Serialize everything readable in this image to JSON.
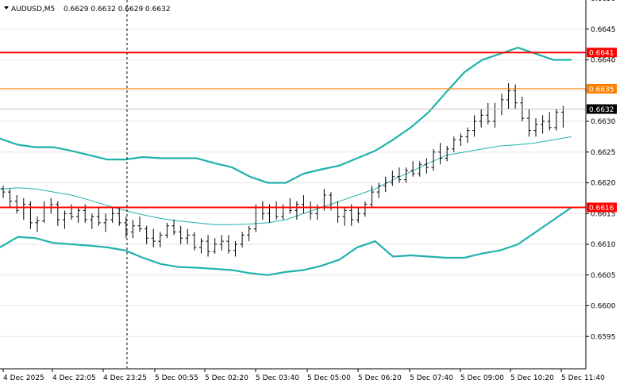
{
  "header": {
    "symbol_tf": "AUDUSD,M5",
    "ohlc": "0.6629 0.6632 0.6629 0.6632"
  },
  "colors": {
    "bg": "#ffffff",
    "bars": "#000000",
    "bands": "#20b2aa",
    "hline_red": "#ff0000",
    "hline_orange": "#ff7f00",
    "axis": "#000000",
    "grid": "#c0c0c0"
  },
  "chart_data": {
    "type": "ohlc",
    "symbol": "AUDUSD",
    "timeframe": "M5",
    "ylim": [
      0.659,
      0.665
    ],
    "y_ticks": [
      "0.6650",
      "0.6645",
      "0.6640",
      "0.6635",
      "0.6630",
      "0.6625",
      "0.6620",
      "0.6615",
      "0.6610",
      "0.6605",
      "0.6600",
      "0.6595"
    ],
    "x_ticks": [
      "4 Dec 2025",
      "4 Dec 22:05",
      "4 Dec 23:25",
      "5 Dec 00:55",
      "5 Dec 02:20",
      "5 Dec 03:40",
      "5 Dec 05:00",
      "5 Dec 06:20",
      "5 Dec 07:40",
      "5 Dec 09:00",
      "5 Dec 10:20",
      "5 Dec 11:40"
    ],
    "price_labels": [
      {
        "text": "0.6641",
        "value": 0.66412,
        "style": "red"
      },
      {
        "text": "0.6635",
        "value": 0.66353,
        "style": "orange"
      },
      {
        "text": "0.6632",
        "value": 0.6632,
        "style": "current"
      },
      {
        "text": "0.6616",
        "value": 0.6616,
        "style": "red"
      }
    ],
    "horizontal_lines": [
      {
        "value": 0.66412,
        "color": "red"
      },
      {
        "value": 0.66353,
        "color": "orange"
      },
      {
        "value": 0.6616,
        "color": "red"
      }
    ],
    "current_price": 0.6632,
    "bollinger_upper": [
      0.66272,
      0.66262,
      0.66258,
      0.66258,
      0.66252,
      0.66245,
      0.66238,
      0.66238,
      0.66242,
      0.6624,
      0.6624,
      0.6624,
      0.66232,
      0.66225,
      0.6621,
      0.662,
      0.662,
      0.66215,
      0.66222,
      0.66228,
      0.6624,
      0.66252,
      0.6627,
      0.6629,
      0.66315,
      0.66348,
      0.6638,
      0.664,
      0.6641,
      0.6642,
      0.6641,
      0.664,
      0.664
    ],
    "bollinger_middle": [
      0.6619,
      0.66192,
      0.6619,
      0.66185,
      0.6618,
      0.66172,
      0.66163,
      0.66155,
      0.66148,
      0.66142,
      0.66138,
      0.66135,
      0.66132,
      0.66132,
      0.66133,
      0.66135,
      0.6614,
      0.6615,
      0.6616,
      0.6617,
      0.6618,
      0.6619,
      0.66205,
      0.66218,
      0.66232,
      0.66245,
      0.6625,
      0.66255,
      0.6626,
      0.66262,
      0.66265,
      0.6627,
      0.66275
    ],
    "bollinger_lower": [
      0.66095,
      0.66112,
      0.6611,
      0.66102,
      0.661,
      0.66098,
      0.66095,
      0.6609,
      0.66078,
      0.66068,
      0.66063,
      0.66062,
      0.6606,
      0.66058,
      0.66053,
      0.6605,
      0.66055,
      0.66058,
      0.66065,
      0.66075,
      0.66095,
      0.66105,
      0.6608,
      0.66082,
      0.6608,
      0.66078,
      0.66078,
      0.66085,
      0.6609,
      0.661,
      0.6612,
      0.6614,
      0.6616
    ],
    "bars": [
      [
        0.6619,
        0.66195,
        0.66175,
        0.66185
      ],
      [
        0.66185,
        0.6619,
        0.6616,
        0.6617
      ],
      [
        0.6617,
        0.6618,
        0.6615,
        0.66155
      ],
      [
        0.6616,
        0.66175,
        0.6614,
        0.66165
      ],
      [
        0.66165,
        0.6617,
        0.66125,
        0.66135
      ],
      [
        0.66135,
        0.66145,
        0.6612,
        0.66138
      ],
      [
        0.66138,
        0.6617,
        0.66135,
        0.6616
      ],
      [
        0.6616,
        0.66175,
        0.6615,
        0.66165
      ],
      [
        0.66165,
        0.6617,
        0.6613,
        0.6614
      ],
      [
        0.6614,
        0.66155,
        0.66125,
        0.6615
      ],
      [
        0.6615,
        0.66165,
        0.6614,
        0.66145
      ],
      [
        0.66145,
        0.6616,
        0.66135,
        0.66155
      ],
      [
        0.66155,
        0.66165,
        0.66135,
        0.6614
      ],
      [
        0.6614,
        0.6615,
        0.66125,
        0.66145
      ],
      [
        0.66145,
        0.6616,
        0.6613,
        0.66135
      ],
      [
        0.66135,
        0.6615,
        0.6612,
        0.6614
      ],
      [
        0.6614,
        0.6616,
        0.66135,
        0.6615
      ],
      [
        0.6615,
        0.6616,
        0.6613,
        0.66135
      ],
      [
        0.66135,
        0.66145,
        0.6611,
        0.6612
      ],
      [
        0.6612,
        0.6614,
        0.6611,
        0.6613
      ],
      [
        0.6613,
        0.66145,
        0.6612,
        0.66125
      ],
      [
        0.66125,
        0.6613,
        0.661,
        0.6611
      ],
      [
        0.6611,
        0.66125,
        0.66095,
        0.66105
      ],
      [
        0.66105,
        0.6612,
        0.66095,
        0.66115
      ],
      [
        0.66115,
        0.66135,
        0.6611,
        0.6613
      ],
      [
        0.6613,
        0.6614,
        0.66115,
        0.6612
      ],
      [
        0.6612,
        0.6613,
        0.661,
        0.6611
      ],
      [
        0.6611,
        0.66125,
        0.661,
        0.66115
      ],
      [
        0.66115,
        0.6612,
        0.6609,
        0.66095
      ],
      [
        0.66095,
        0.6611,
        0.66085,
        0.66105
      ],
      [
        0.66105,
        0.66115,
        0.6608,
        0.66088
      ],
      [
        0.66088,
        0.6611,
        0.66085,
        0.661
      ],
      [
        0.661,
        0.66115,
        0.6609,
        0.66105
      ],
      [
        0.66105,
        0.66115,
        0.66085,
        0.6609
      ],
      [
        0.6609,
        0.66105,
        0.6608,
        0.661
      ],
      [
        0.661,
        0.6612,
        0.66095,
        0.66115
      ],
      [
        0.66115,
        0.6613,
        0.66105,
        0.66125
      ],
      [
        0.66125,
        0.66165,
        0.6612,
        0.6616
      ],
      [
        0.6616,
        0.6617,
        0.6614,
        0.6615
      ],
      [
        0.6615,
        0.66165,
        0.66135,
        0.6616
      ],
      [
        0.6616,
        0.6617,
        0.6614,
        0.66145
      ],
      [
        0.66145,
        0.66165,
        0.6614,
        0.6616
      ],
      [
        0.6616,
        0.66175,
        0.6615,
        0.66155
      ],
      [
        0.66155,
        0.6617,
        0.6614,
        0.66165
      ],
      [
        0.66165,
        0.6618,
        0.6615,
        0.6616
      ],
      [
        0.6616,
        0.6617,
        0.6614,
        0.6615
      ],
      [
        0.6615,
        0.66165,
        0.6614,
        0.6616
      ],
      [
        0.6616,
        0.6619,
        0.66155,
        0.6618
      ],
      [
        0.6618,
        0.66185,
        0.66155,
        0.6616
      ],
      [
        0.6616,
        0.6617,
        0.66135,
        0.66145
      ],
      [
        0.66145,
        0.6616,
        0.6613,
        0.66155
      ],
      [
        0.66155,
        0.66165,
        0.6613,
        0.6614
      ],
      [
        0.6614,
        0.6616,
        0.66135,
        0.6615
      ],
      [
        0.6615,
        0.6617,
        0.66145,
        0.66165
      ],
      [
        0.66165,
        0.66195,
        0.6616,
        0.66185
      ],
      [
        0.66185,
        0.662,
        0.66175,
        0.66195
      ],
      [
        0.66195,
        0.6621,
        0.66185,
        0.662
      ],
      [
        0.662,
        0.6622,
        0.66195,
        0.6621
      ],
      [
        0.6621,
        0.66225,
        0.662,
        0.66205
      ],
      [
        0.66205,
        0.66225,
        0.662,
        0.6622
      ],
      [
        0.6622,
        0.66235,
        0.6621,
        0.66215
      ],
      [
        0.66215,
        0.66235,
        0.6621,
        0.6623
      ],
      [
        0.6623,
        0.6624,
        0.66215,
        0.66225
      ],
      [
        0.66225,
        0.66255,
        0.6622,
        0.6625
      ],
      [
        0.6625,
        0.66265,
        0.6623,
        0.6624
      ],
      [
        0.6624,
        0.6626,
        0.66235,
        0.66255
      ],
      [
        0.66255,
        0.66275,
        0.6625,
        0.6627
      ],
      [
        0.6627,
        0.6628,
        0.6626,
        0.66275
      ],
      [
        0.66275,
        0.6629,
        0.66265,
        0.66285
      ],
      [
        0.66285,
        0.6631,
        0.66275,
        0.663
      ],
      [
        0.663,
        0.6632,
        0.6629,
        0.6631
      ],
      [
        0.6631,
        0.6633,
        0.66295,
        0.663
      ],
      [
        0.663,
        0.6633,
        0.6629,
        0.6632
      ],
      [
        0.6632,
        0.66345,
        0.6631,
        0.66335
      ],
      [
        0.66335,
        0.66362,
        0.6632,
        0.6635
      ],
      [
        0.6635,
        0.6636,
        0.6632,
        0.6633
      ],
      [
        0.6633,
        0.6634,
        0.663,
        0.66305
      ],
      [
        0.66305,
        0.6632,
        0.66275,
        0.66285
      ],
      [
        0.66285,
        0.66305,
        0.66275,
        0.66295
      ],
      [
        0.66295,
        0.6631,
        0.6628,
        0.663
      ],
      [
        0.663,
        0.66315,
        0.66285,
        0.6629
      ],
      [
        0.6629,
        0.6632,
        0.66285,
        0.66315
      ],
      [
        0.66315,
        0.66325,
        0.6629,
        0.6632
      ]
    ]
  }
}
